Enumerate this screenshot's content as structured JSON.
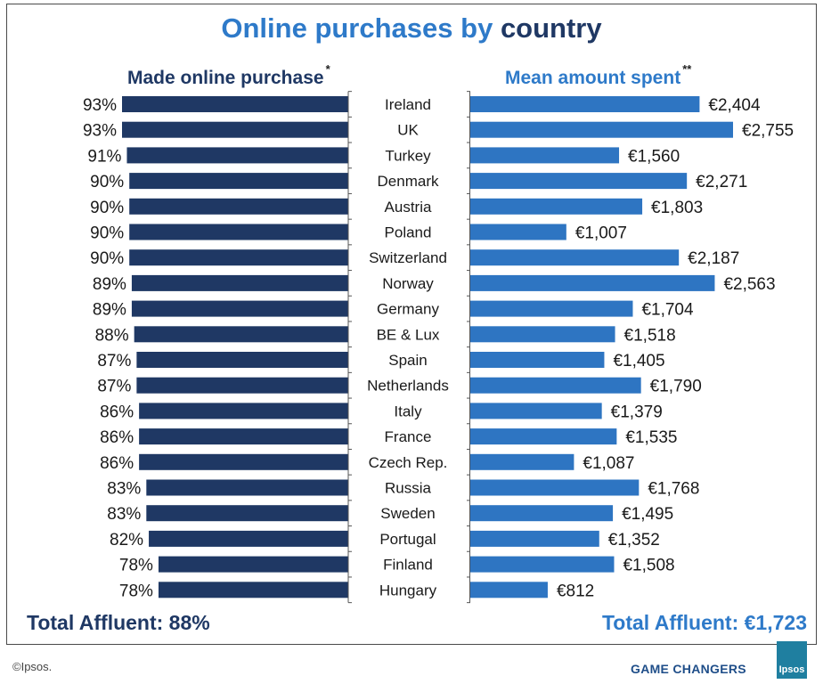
{
  "chart_data": {
    "type": "bar",
    "title_part1": "Online purchases by",
    "title_part2": "country",
    "left_panel": {
      "title": "Made online purchase",
      "marker": "*",
      "color": "#1f3864",
      "xlim": [
        0,
        93
      ]
    },
    "right_panel": {
      "title": "Mean amount spent",
      "marker": "**",
      "color": "#2e75c2",
      "xlim": [
        0,
        2755
      ]
    },
    "categories": [
      "Ireland",
      "UK",
      "Turkey",
      "Denmark",
      "Austria",
      "Poland",
      "Switzerland",
      "Norway",
      "Germany",
      "BE & Lux",
      "Spain",
      "Netherlands",
      "Italy",
      "France",
      "Czech Rep.",
      "Russia",
      "Sweden",
      "Portugal",
      "Finland",
      "Hungary"
    ],
    "series": [
      {
        "name": "Made online purchase",
        "values": [
          93,
          93,
          91,
          90,
          90,
          90,
          90,
          89,
          89,
          88,
          87,
          87,
          86,
          86,
          86,
          83,
          83,
          82,
          78,
          78
        ],
        "labels": [
          "93%",
          "93%",
          "91%",
          "90%",
          "90%",
          "90%",
          "90%",
          "89%",
          "89%",
          "88%",
          "87%",
          "87%",
          "86%",
          "86%",
          "86%",
          "83%",
          "83%",
          "82%",
          "78%",
          "78%"
        ]
      },
      {
        "name": "Mean amount spent",
        "values": [
          2404,
          2755,
          1560,
          2271,
          1803,
          1007,
          2187,
          2563,
          1704,
          1518,
          1405,
          1790,
          1379,
          1535,
          1087,
          1768,
          1495,
          1352,
          1508,
          812
        ],
        "labels": [
          "€2,404",
          "€2,755",
          "€1,560",
          "€2,271",
          "€1,803",
          "€1,007",
          "€2,187",
          "€2,563",
          "€1,704",
          "€1,518",
          "€1,405",
          "€1,790",
          "€1,379",
          "€1,535",
          "€1,087",
          "€1,768",
          "€1,495",
          "€1,352",
          "€1,508",
          "€812"
        ]
      }
    ],
    "totals": {
      "left": "Total Affluent: 88%",
      "right": "Total Affluent: €1,723"
    }
  },
  "footer": {
    "copyright": "©Ipsos.",
    "brand": "GAME CHANGERS",
    "logo_text": "Ipsos"
  }
}
